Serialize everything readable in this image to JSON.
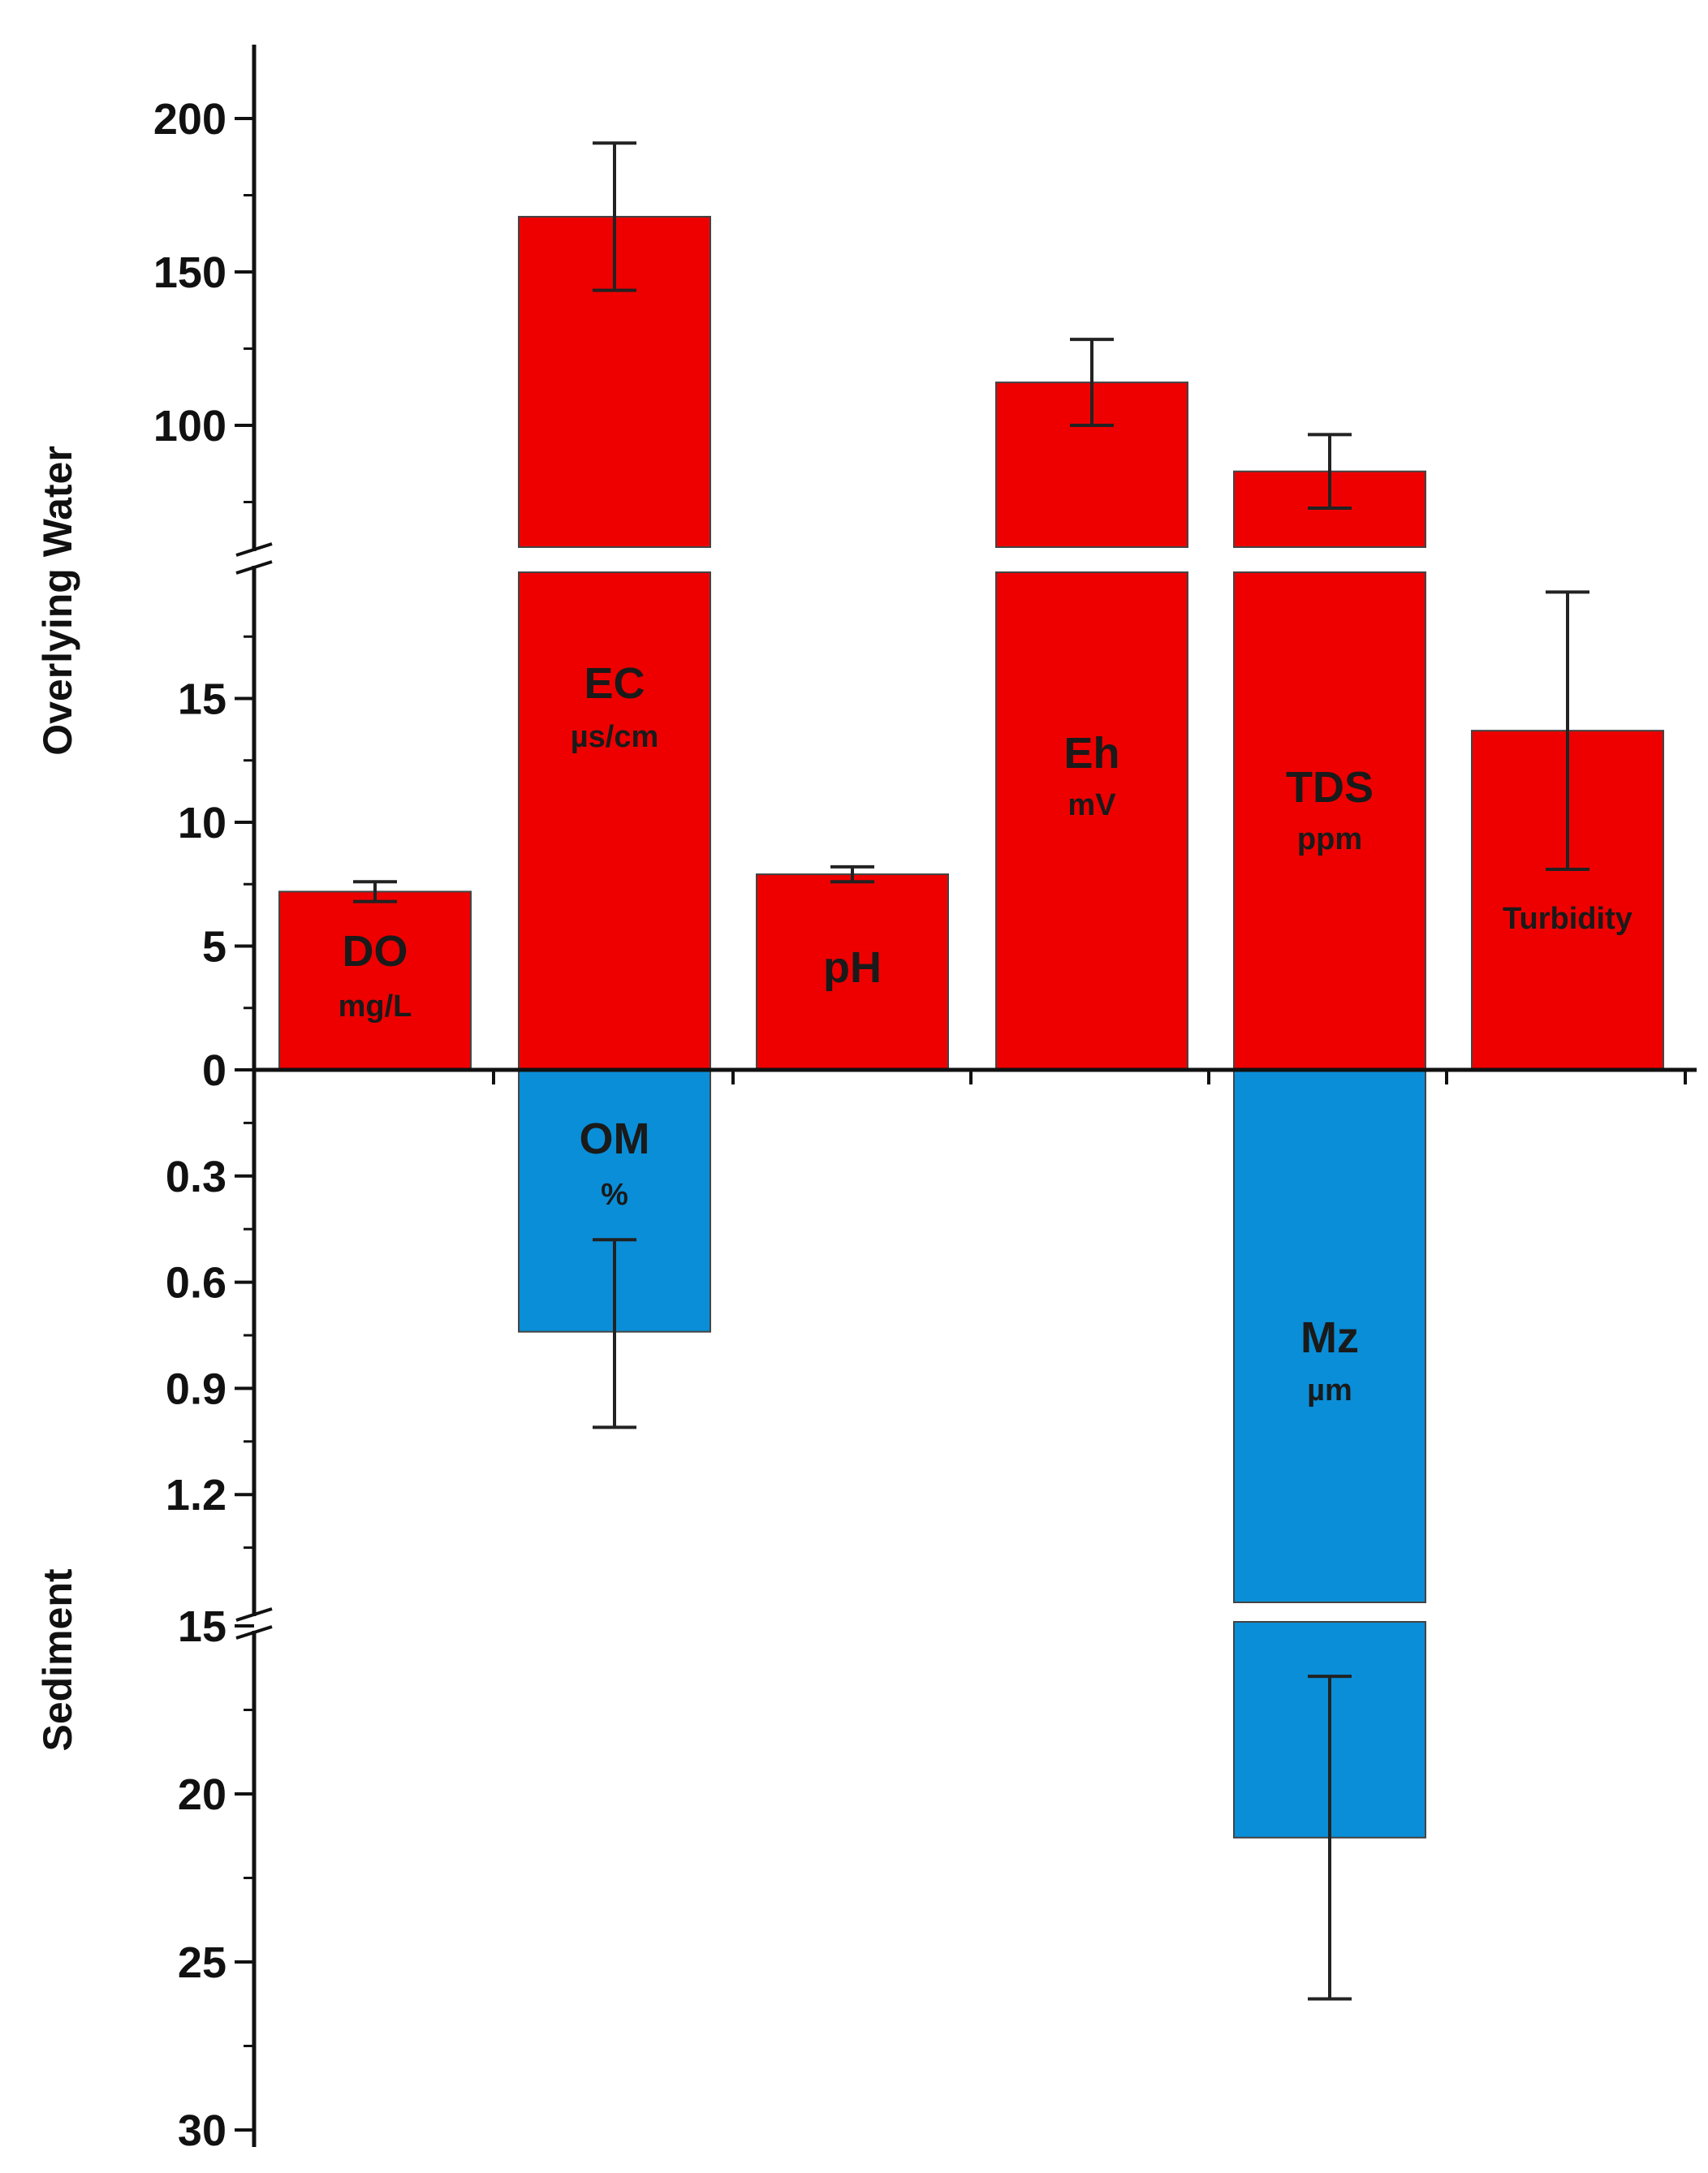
{
  "chart_data": {
    "type": "bar",
    "axis_titles": {
      "upper": "Overlying Water",
      "lower": "Sediment"
    },
    "upper_axis": {
      "segments": [
        {
          "range": [
            0,
            20
          ],
          "ticks": [
            0,
            5,
            10,
            15
          ]
        },
        {
          "range": [
            62,
            225
          ],
          "ticks": [
            100,
            150,
            200
          ]
        }
      ]
    },
    "lower_axis": {
      "segments": [
        {
          "range": [
            0,
            1.5
          ],
          "ticks": [
            0.3,
            0.6,
            0.9,
            1.2
          ]
        },
        {
          "range": [
            15,
            30
          ],
          "ticks": [
            15,
            20,
            25,
            30
          ]
        }
      ]
    },
    "overlying_water": [
      {
        "name": "DO",
        "unit": "mg/L",
        "value": 7.2,
        "err_low": 6.8,
        "err_high": 7.6
      },
      {
        "name": "EC",
        "unit": "µs/cm",
        "value": 168,
        "err_low": 144,
        "err_high": 192
      },
      {
        "name": "pH",
        "unit": "",
        "value": 7.9,
        "err_low": 7.6,
        "err_high": 8.2
      },
      {
        "name": "Eh",
        "unit": "mV",
        "value": 114,
        "err_low": 100,
        "err_high": 128
      },
      {
        "name": "TDS",
        "unit": "ppm",
        "value": 85,
        "err_low": 73,
        "err_high": 97
      },
      {
        "name": "Turbidity",
        "unit": "",
        "value": 13.7,
        "err_low": 8.1,
        "err_high": 19.3
      }
    ],
    "sediment": [
      {
        "name": "OM",
        "unit": "%",
        "value": 0.74,
        "err_low": 0.48,
        "err_high": 1.01
      },
      {
        "name": "Mz",
        "unit": "µm",
        "value": 21.3,
        "err_low": 16.5,
        "err_high": 26.1
      }
    ],
    "colors": {
      "overlying": "#ee0000",
      "sediment": "#0a8ed8",
      "axis": "#111111"
    }
  }
}
